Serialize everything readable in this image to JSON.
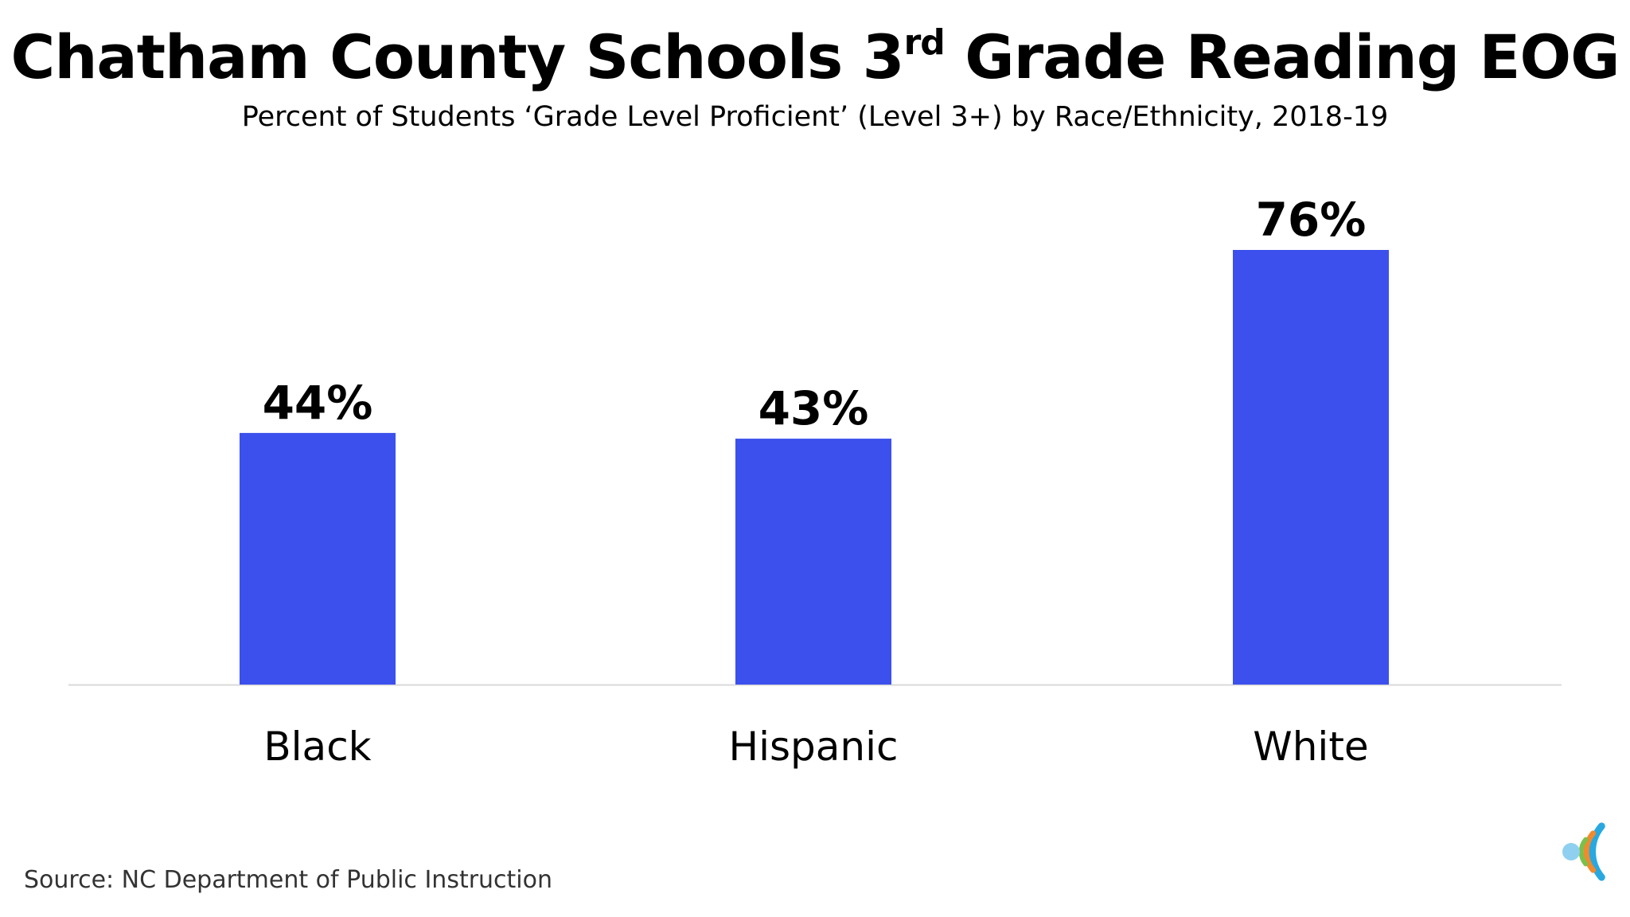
{
  "header": {
    "title_main": "Chatham County Schools 3",
    "title_sup": "rd",
    "title_end": " Grade Reading EOG",
    "subtitle": "Percent of Students ‘Grade Level Proficient’ (Level 3+) by Race/Ethnicity, 2018-19"
  },
  "source": "Source: NC Department of Public Instruction",
  "colors": {
    "bar": "#3b50ec",
    "axis": "#d9d9d9",
    "label": "#000000",
    "logo_blue": "#29a8e0",
    "logo_orange": "#f08a2c",
    "logo_green": "#7cc04b",
    "logo_dot": "#8fd0f0"
  },
  "chart_data": {
    "type": "bar",
    "title": "Chatham County Schools 3rd Grade Reading EOG",
    "subtitle": "Percent of Students ‘Grade Level Proficient’ (Level 3+) by Race/Ethnicity, 2018-19",
    "categories": [
      "Black",
      "Hispanic",
      "White"
    ],
    "values": [
      44,
      43,
      76
    ],
    "value_labels": [
      "44%",
      "43%",
      "76%"
    ],
    "unit": "%",
    "ylim": [
      0,
      100
    ],
    "grid": false,
    "legend": "none"
  },
  "logo": {
    "icon": "concentric-c-logo-icon"
  }
}
